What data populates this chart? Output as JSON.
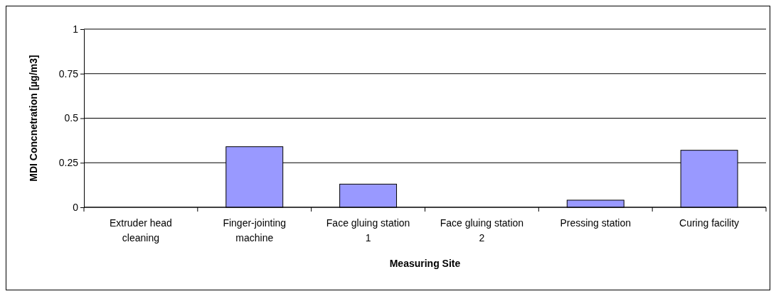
{
  "chart_data": {
    "type": "bar",
    "xlabel": "Measuring Site",
    "ylabel": "MDI Concnetration [µg/m3]",
    "categories": [
      "Extruder head cleaning",
      "Finger-jointing machine",
      "Face gluing station 1",
      "Face gluing station 2",
      "Pressing station",
      "Curing facility"
    ],
    "values": [
      0,
      0.34,
      0.13,
      0,
      0.04,
      0.32
    ],
    "color": "#9999ff",
    "ylim": [
      0,
      1
    ],
    "yticks": [
      0,
      0.25,
      0.5,
      0.75,
      1
    ],
    "grid": "y"
  }
}
